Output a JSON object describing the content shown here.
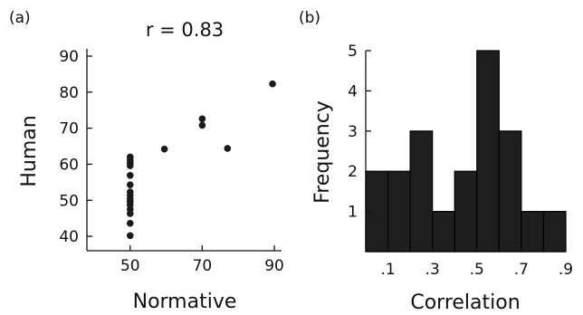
{
  "chart_data": [
    {
      "type": "scatter",
      "panel_label": "(a)",
      "title": "r = 0.83",
      "xlabel": "Normative",
      "ylabel": "Human",
      "xlim": [
        38,
        92
      ],
      "ylim": [
        36,
        92
      ],
      "x_ticks": [
        50,
        70,
        90
      ],
      "x_tick_labels": [
        "50",
        "70",
        "90"
      ],
      "y_ticks": [
        40,
        50,
        60,
        70,
        80,
        90
      ],
      "y_tick_labels": [
        "40",
        "50",
        "60",
        "70",
        "80",
        "90"
      ],
      "points": [
        {
          "x": 50,
          "y": 40.2
        },
        {
          "x": 50,
          "y": 43.6
        },
        {
          "x": 50,
          "y": 46.3
        },
        {
          "x": 50,
          "y": 47.5
        },
        {
          "x": 50,
          "y": 48.7
        },
        {
          "x": 50,
          "y": 49.6
        },
        {
          "x": 50,
          "y": 50.4
        },
        {
          "x": 50,
          "y": 51.4
        },
        {
          "x": 50,
          "y": 52.3
        },
        {
          "x": 50,
          "y": 54.3
        },
        {
          "x": 50,
          "y": 56.9
        },
        {
          "x": 50,
          "y": 59.6
        },
        {
          "x": 50,
          "y": 60.4
        },
        {
          "x": 50,
          "y": 61.2
        },
        {
          "x": 50,
          "y": 62.0
        },
        {
          "x": 59.5,
          "y": 64.2
        },
        {
          "x": 70,
          "y": 70.8
        },
        {
          "x": 70,
          "y": 72.6
        },
        {
          "x": 77,
          "y": 64.4
        },
        {
          "x": 89.5,
          "y": 82.3
        }
      ],
      "grid": false
    },
    {
      "type": "bar",
      "panel_label": "(b)",
      "title": "",
      "xlabel": "Correlation",
      "ylabel": "Frequency",
      "xlim": [
        0,
        0.9
      ],
      "ylim": [
        0,
        5
      ],
      "bin_width": 0.1,
      "bins": [
        {
          "start": 0.0,
          "value": 2
        },
        {
          "start": 0.1,
          "value": 2
        },
        {
          "start": 0.2,
          "value": 3
        },
        {
          "start": 0.3,
          "value": 1
        },
        {
          "start": 0.4,
          "value": 2
        },
        {
          "start": 0.5,
          "value": 5
        },
        {
          "start": 0.6,
          "value": 3
        },
        {
          "start": 0.7,
          "value": 1
        },
        {
          "start": 0.8,
          "value": 1
        }
      ],
      "x_ticks": [
        0.1,
        0.3,
        0.5,
        0.7,
        0.9
      ],
      "x_tick_labels": [
        ".1",
        ".3",
        ".5",
        ".7",
        ".9"
      ],
      "y_ticks": [
        1,
        2,
        3,
        4,
        5
      ],
      "y_tick_labels": [
        "1",
        "2",
        "3",
        "4",
        "5"
      ],
      "grid": false
    }
  ]
}
